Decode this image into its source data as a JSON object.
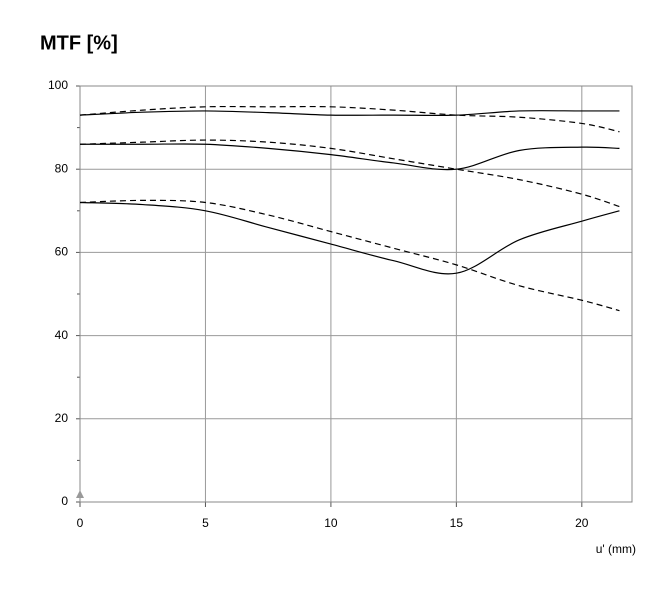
{
  "chart_data": {
    "type": "line",
    "title": "MTF [%]",
    "x_label": "u' (mm)",
    "x": [
      0,
      2.5,
      5,
      7.5,
      10,
      12.5,
      15,
      17.5,
      20,
      21.5
    ],
    "series": [
      {
        "color": "#000000",
        "dash": false,
        "values": [
          93,
          93.7,
          94,
          93.6,
          93,
          93,
          93,
          94,
          94,
          94
        ]
      },
      {
        "color": "#000000",
        "dash": true,
        "values": [
          93,
          94.2,
          95,
          95,
          95,
          94.2,
          93,
          92.5,
          91,
          89
        ]
      },
      {
        "color": "#000000",
        "dash": false,
        "values": [
          86,
          86,
          86,
          85,
          83.5,
          81.5,
          80,
          84.5,
          85.3,
          85
        ]
      },
      {
        "color": "#000000",
        "dash": true,
        "values": [
          86,
          86.5,
          87,
          86.5,
          85,
          82.5,
          80,
          77.5,
          74,
          71
        ]
      },
      {
        "color": "#000000",
        "dash": false,
        "values": [
          72,
          71.5,
          70,
          66,
          62,
          58,
          55,
          63,
          67.5,
          70
        ]
      },
      {
        "color": "#000000",
        "dash": true,
        "values": [
          72,
          72.5,
          72,
          69,
          65,
          61,
          57,
          52,
          48.5,
          46
        ]
      }
    ],
    "xlim": [
      0,
      22
    ],
    "xticks": [
      0,
      5,
      10,
      15,
      20
    ],
    "ylim": [
      0,
      100
    ],
    "yticks": [
      0,
      20,
      40,
      60,
      80,
      100
    ],
    "yminor_ticks": [
      10,
      30,
      50,
      70,
      90
    ],
    "grid": true
  }
}
